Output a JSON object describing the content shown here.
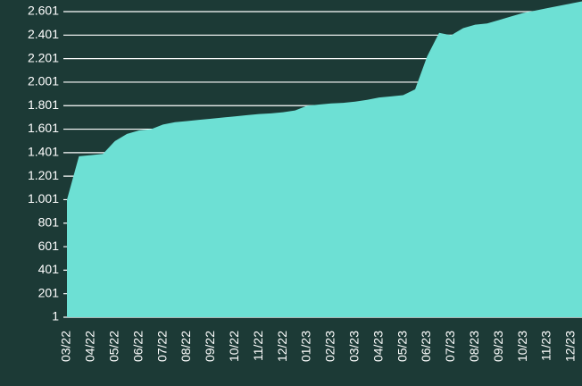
{
  "chart_data": {
    "type": "area",
    "categories": [
      "03/22",
      null,
      "04/22",
      null,
      "05/22",
      null,
      "06/22",
      null,
      "07/22",
      null,
      "08/22",
      null,
      "09/22",
      null,
      "10/22",
      null,
      "11/22",
      null,
      "12/22",
      null,
      "01/23",
      null,
      "02/23",
      null,
      "03/23",
      null,
      "04/23",
      null,
      "05/23",
      null,
      "06/23",
      null,
      "07/23",
      null,
      "08/23",
      null,
      "09/23",
      null,
      "10/23",
      null,
      "11/23",
      null,
      "12/23",
      null
    ],
    "values": [
      1001,
      1370,
      1380,
      1390,
      1500,
      1560,
      1590,
      1600,
      1640,
      1660,
      1670,
      1680,
      1690,
      1700,
      1710,
      1720,
      1730,
      1735,
      1745,
      1760,
      1800,
      1810,
      1820,
      1825,
      1835,
      1850,
      1870,
      1880,
      1890,
      1940,
      2220,
      2420,
      2400,
      2460,
      2490,
      2500,
      2530,
      2560,
      2590,
      2610,
      2630,
      2650,
      2670,
      2690
    ],
    "color": "#6de0d4",
    "ylim": [
      1,
      2601
    ],
    "yticks": [
      1,
      201,
      401,
      601,
      801,
      {
        "value": 1001,
        "label": "1.001"
      },
      {
        "value": 1201,
        "label": "1.201"
      },
      {
        "value": 1401,
        "label": "1.401"
      },
      {
        "value": 1601,
        "label": "1.601"
      },
      {
        "value": 1801,
        "label": "1.801"
      },
      {
        "value": 2001,
        "label": "2.001"
      },
      {
        "value": 2201,
        "label": "2.201"
      },
      {
        "value": 2401,
        "label": "2.401"
      },
      {
        "value": 2601,
        "label": "2.601"
      }
    ],
    "grid": true
  }
}
